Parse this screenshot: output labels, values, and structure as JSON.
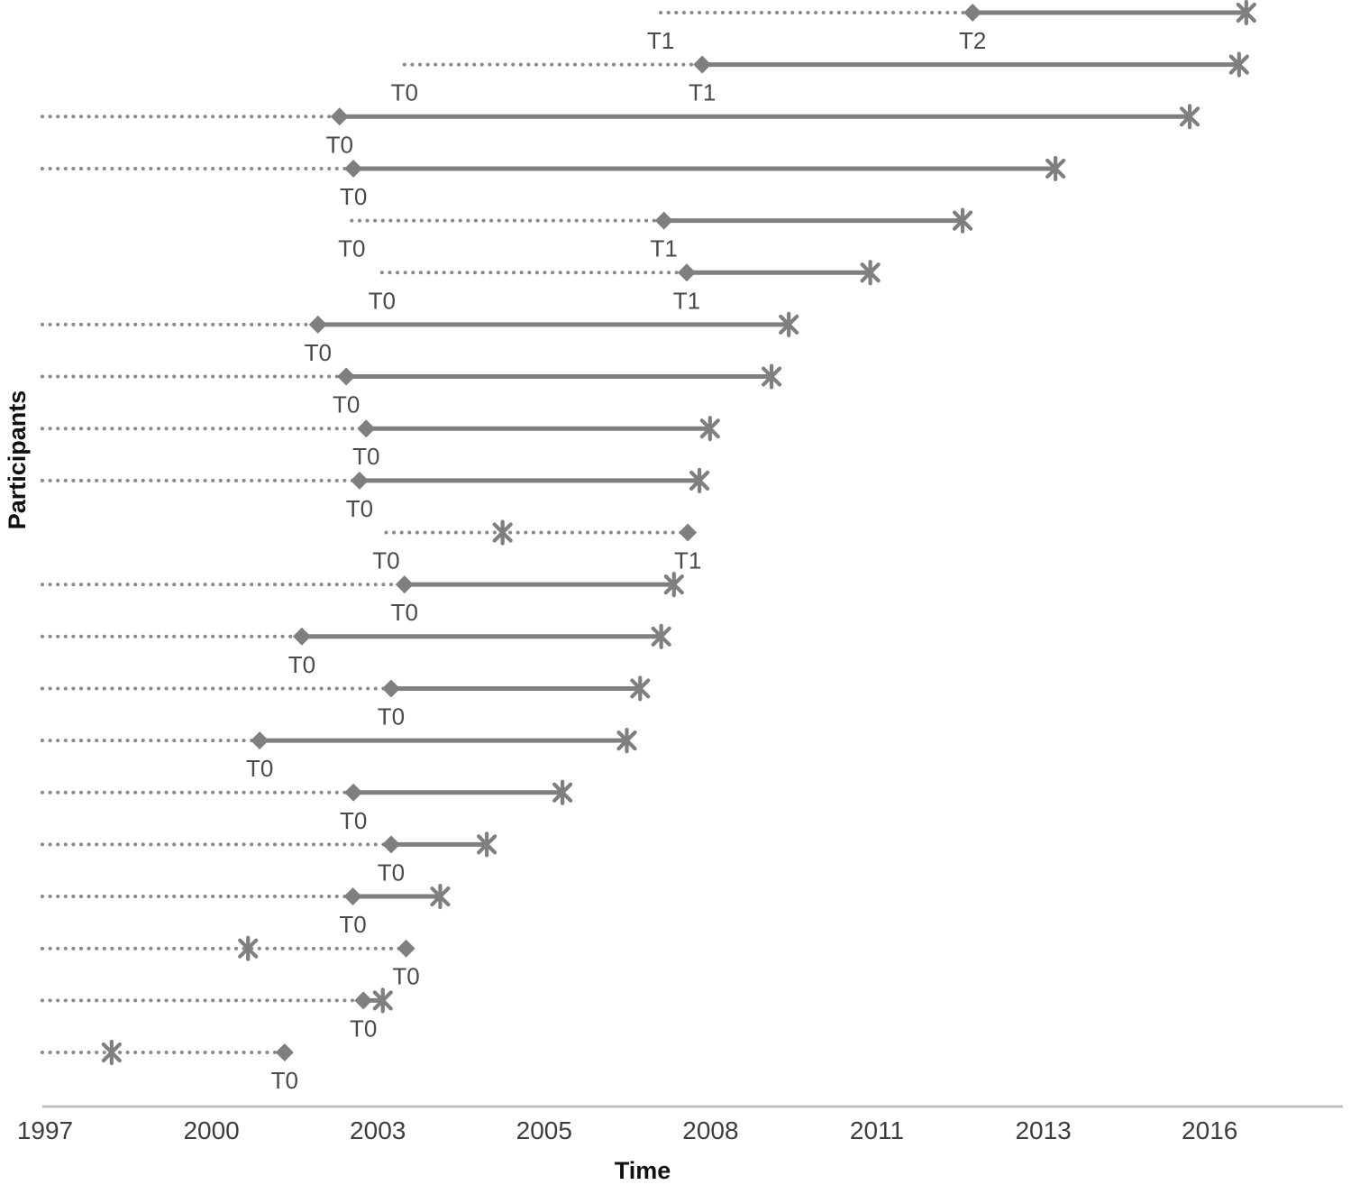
{
  "chart_data": {
    "type": "timeline",
    "title": "",
    "xlabel": "Time",
    "ylabel": "Participants",
    "grid": false,
    "legend": "none",
    "x_axis": {
      "tick_labels": [
        "1997",
        "2000",
        "2003",
        "2005",
        "2008",
        "2011",
        "2013",
        "2016"
      ],
      "tick_years": [
        1997,
        2000,
        2003,
        2005,
        2008,
        2011,
        2013,
        2016
      ],
      "note": "ticks are evenly spaced on the axis despite unequal year steps"
    },
    "marker_shapes": {
      "timepoint": "diamond",
      "end": "asterisk"
    },
    "line_styles": {
      "pre_period": "dotted",
      "follow_up": "solid"
    },
    "participants": [
      {
        "start_year": 2007.1,
        "start_label": "T1",
        "diamond_year": 2012.15,
        "diamond_label": "T2",
        "asterisk_year": 2016.66
      },
      {
        "start_year": 2003.32,
        "start_label": "T0",
        "diamond_year": 2007.85,
        "diamond_label": "T1",
        "asterisk_year": 2016.53
      },
      {
        "start_year": 1996.95,
        "start_label": null,
        "diamond_year": 2002.31,
        "diamond_label": "T0",
        "asterisk_year": 2015.64
      },
      {
        "start_year": 1996.95,
        "start_label": null,
        "diamond_year": 2002.56,
        "diamond_label": "T0",
        "asterisk_year": 2013.22
      },
      {
        "start_year": 2002.53,
        "start_label": "T0",
        "diamond_year": 2007.16,
        "diamond_label": "T1",
        "asterisk_year": 2012.03
      },
      {
        "start_year": 2003.05,
        "start_label": "T0",
        "diamond_year": 2007.57,
        "diamond_label": "T1",
        "asterisk_year": 2010.88
      },
      {
        "start_year": 1996.95,
        "start_label": null,
        "diamond_year": 2001.92,
        "diamond_label": "T0",
        "asterisk_year": 2009.41
      },
      {
        "start_year": 1996.95,
        "start_label": null,
        "diamond_year": 2002.43,
        "diamond_label": "T0",
        "asterisk_year": 2009.1
      },
      {
        "start_year": 1996.95,
        "start_label": null,
        "diamond_year": 2002.79,
        "diamond_label": "T0",
        "asterisk_year": 2007.99
      },
      {
        "start_year": 1996.95,
        "start_label": null,
        "diamond_year": 2002.67,
        "diamond_label": "T0",
        "asterisk_year": 2007.8
      },
      {
        "start_year": 2003.1,
        "start_label": "T0",
        "diamond_year": 2007.59,
        "diamond_label": "T1",
        "asterisk_year": 2004.5
      },
      {
        "start_year": 1996.95,
        "start_label": null,
        "diamond_year": 2003.32,
        "diamond_label": "T0",
        "asterisk_year": 2007.34
      },
      {
        "start_year": 1996.95,
        "start_label": null,
        "diamond_year": 2001.63,
        "diamond_label": "T0",
        "asterisk_year": 2007.11
      },
      {
        "start_year": 1996.95,
        "start_label": null,
        "diamond_year": 2003.16,
        "diamond_label": "T0",
        "asterisk_year": 2006.73
      },
      {
        "start_year": 1996.95,
        "start_label": null,
        "diamond_year": 2000.87,
        "diamond_label": "T0",
        "asterisk_year": 2006.49
      },
      {
        "start_year": 1996.95,
        "start_label": null,
        "diamond_year": 2002.56,
        "diamond_label": "T0",
        "asterisk_year": 2005.33
      },
      {
        "start_year": 1996.95,
        "start_label": null,
        "diamond_year": 2003.16,
        "diamond_label": "T0",
        "asterisk_year": 2004.31
      },
      {
        "start_year": 1996.95,
        "start_label": null,
        "diamond_year": 2002.55,
        "diamond_label": "T0",
        "asterisk_year": 2003.75
      },
      {
        "start_year": 1996.95,
        "start_label": null,
        "diamond_year": 2003.34,
        "diamond_label": "T0",
        "asterisk_year": 2000.66
      },
      {
        "start_year": 1996.95,
        "start_label": null,
        "diamond_year": 2002.74,
        "diamond_label": "T0",
        "asterisk_year": 2003.06
      },
      {
        "start_year": 1996.95,
        "start_label": null,
        "diamond_year": 2001.32,
        "diamond_label": "T0",
        "asterisk_year": 1998.2
      }
    ]
  },
  "colors": {
    "solid_line": "#7f7f7f",
    "dotted_line": "#8a8a8a",
    "marker": "#7f7f7f",
    "axis_line": "#bfbfbf",
    "tick_text": "#3d3d3d",
    "t_label_text": "#4a4a4a",
    "title_text": "#111111",
    "background": "#ffffff"
  }
}
